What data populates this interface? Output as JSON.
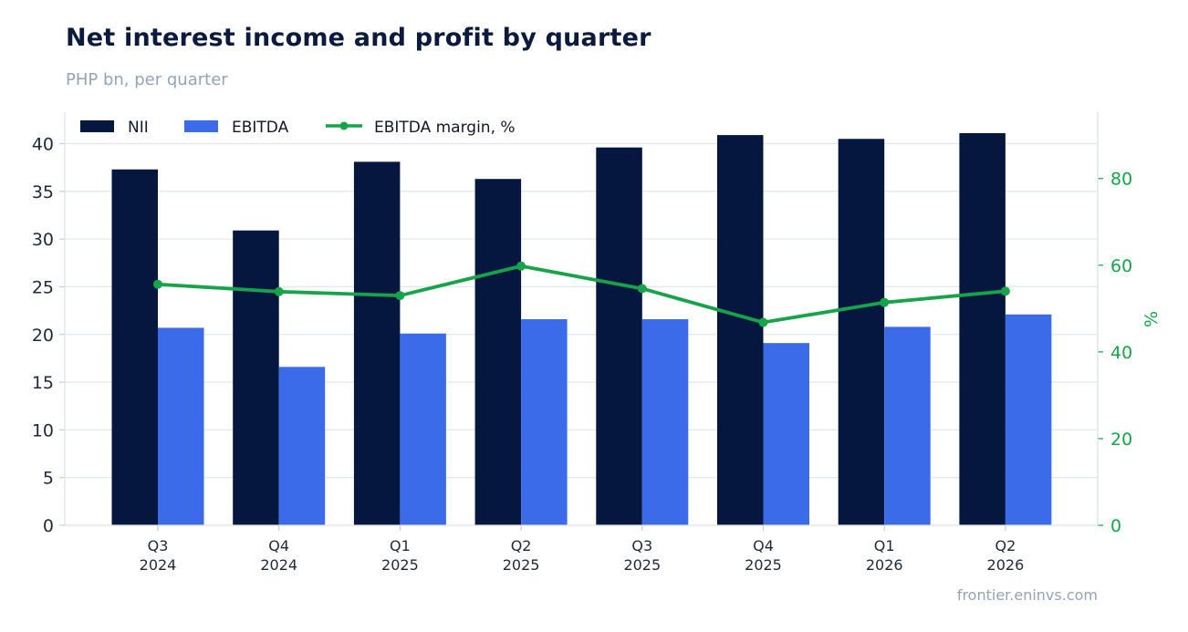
{
  "header": {
    "title": "Net interest income and profit by quarter",
    "subtitle": "PHP bn, per quarter"
  },
  "footer": {
    "source": "frontier.eninvs.com"
  },
  "colors": {
    "nii": "#05173f",
    "ebitda": "#3b6be8",
    "margin": "#16a34a",
    "grid": "#e3e8f0"
  },
  "chart_data": {
    "type": "bar",
    "categories": [
      [
        "Q3",
        "2024"
      ],
      [
        "Q4",
        "2024"
      ],
      [
        "Q1",
        "2025"
      ],
      [
        "Q2",
        "2025"
      ],
      [
        "Q3",
        "2025"
      ],
      [
        "Q4",
        "2025"
      ],
      [
        "Q1",
        "2026"
      ],
      [
        "Q2",
        "2026"
      ]
    ],
    "series": [
      {
        "name": "NII",
        "type": "bar",
        "axis": "left",
        "values": [
          37.3,
          30.9,
          38.1,
          36.3,
          39.6,
          40.9,
          40.5,
          41.1
        ]
      },
      {
        "name": "EBITDA",
        "type": "bar",
        "axis": "left",
        "values": [
          20.7,
          16.6,
          20.1,
          21.6,
          21.6,
          19.1,
          20.8,
          22.1
        ]
      },
      {
        "name": "EBITDA margin, %",
        "type": "line",
        "axis": "right",
        "values": [
          55.6,
          53.9,
          53.0,
          59.8,
          54.6,
          46.8,
          51.4,
          54.0
        ]
      }
    ],
    "y_left": {
      "min": 0,
      "max": 43.3,
      "ticks": [
        0,
        5,
        10,
        15,
        20,
        25,
        30,
        35,
        40
      ]
    },
    "y_right": {
      "min": 0,
      "max": 95.3,
      "ticks": [
        0,
        20,
        40,
        60,
        80
      ],
      "label": "%"
    },
    "grid": true,
    "legend": "top-left"
  }
}
